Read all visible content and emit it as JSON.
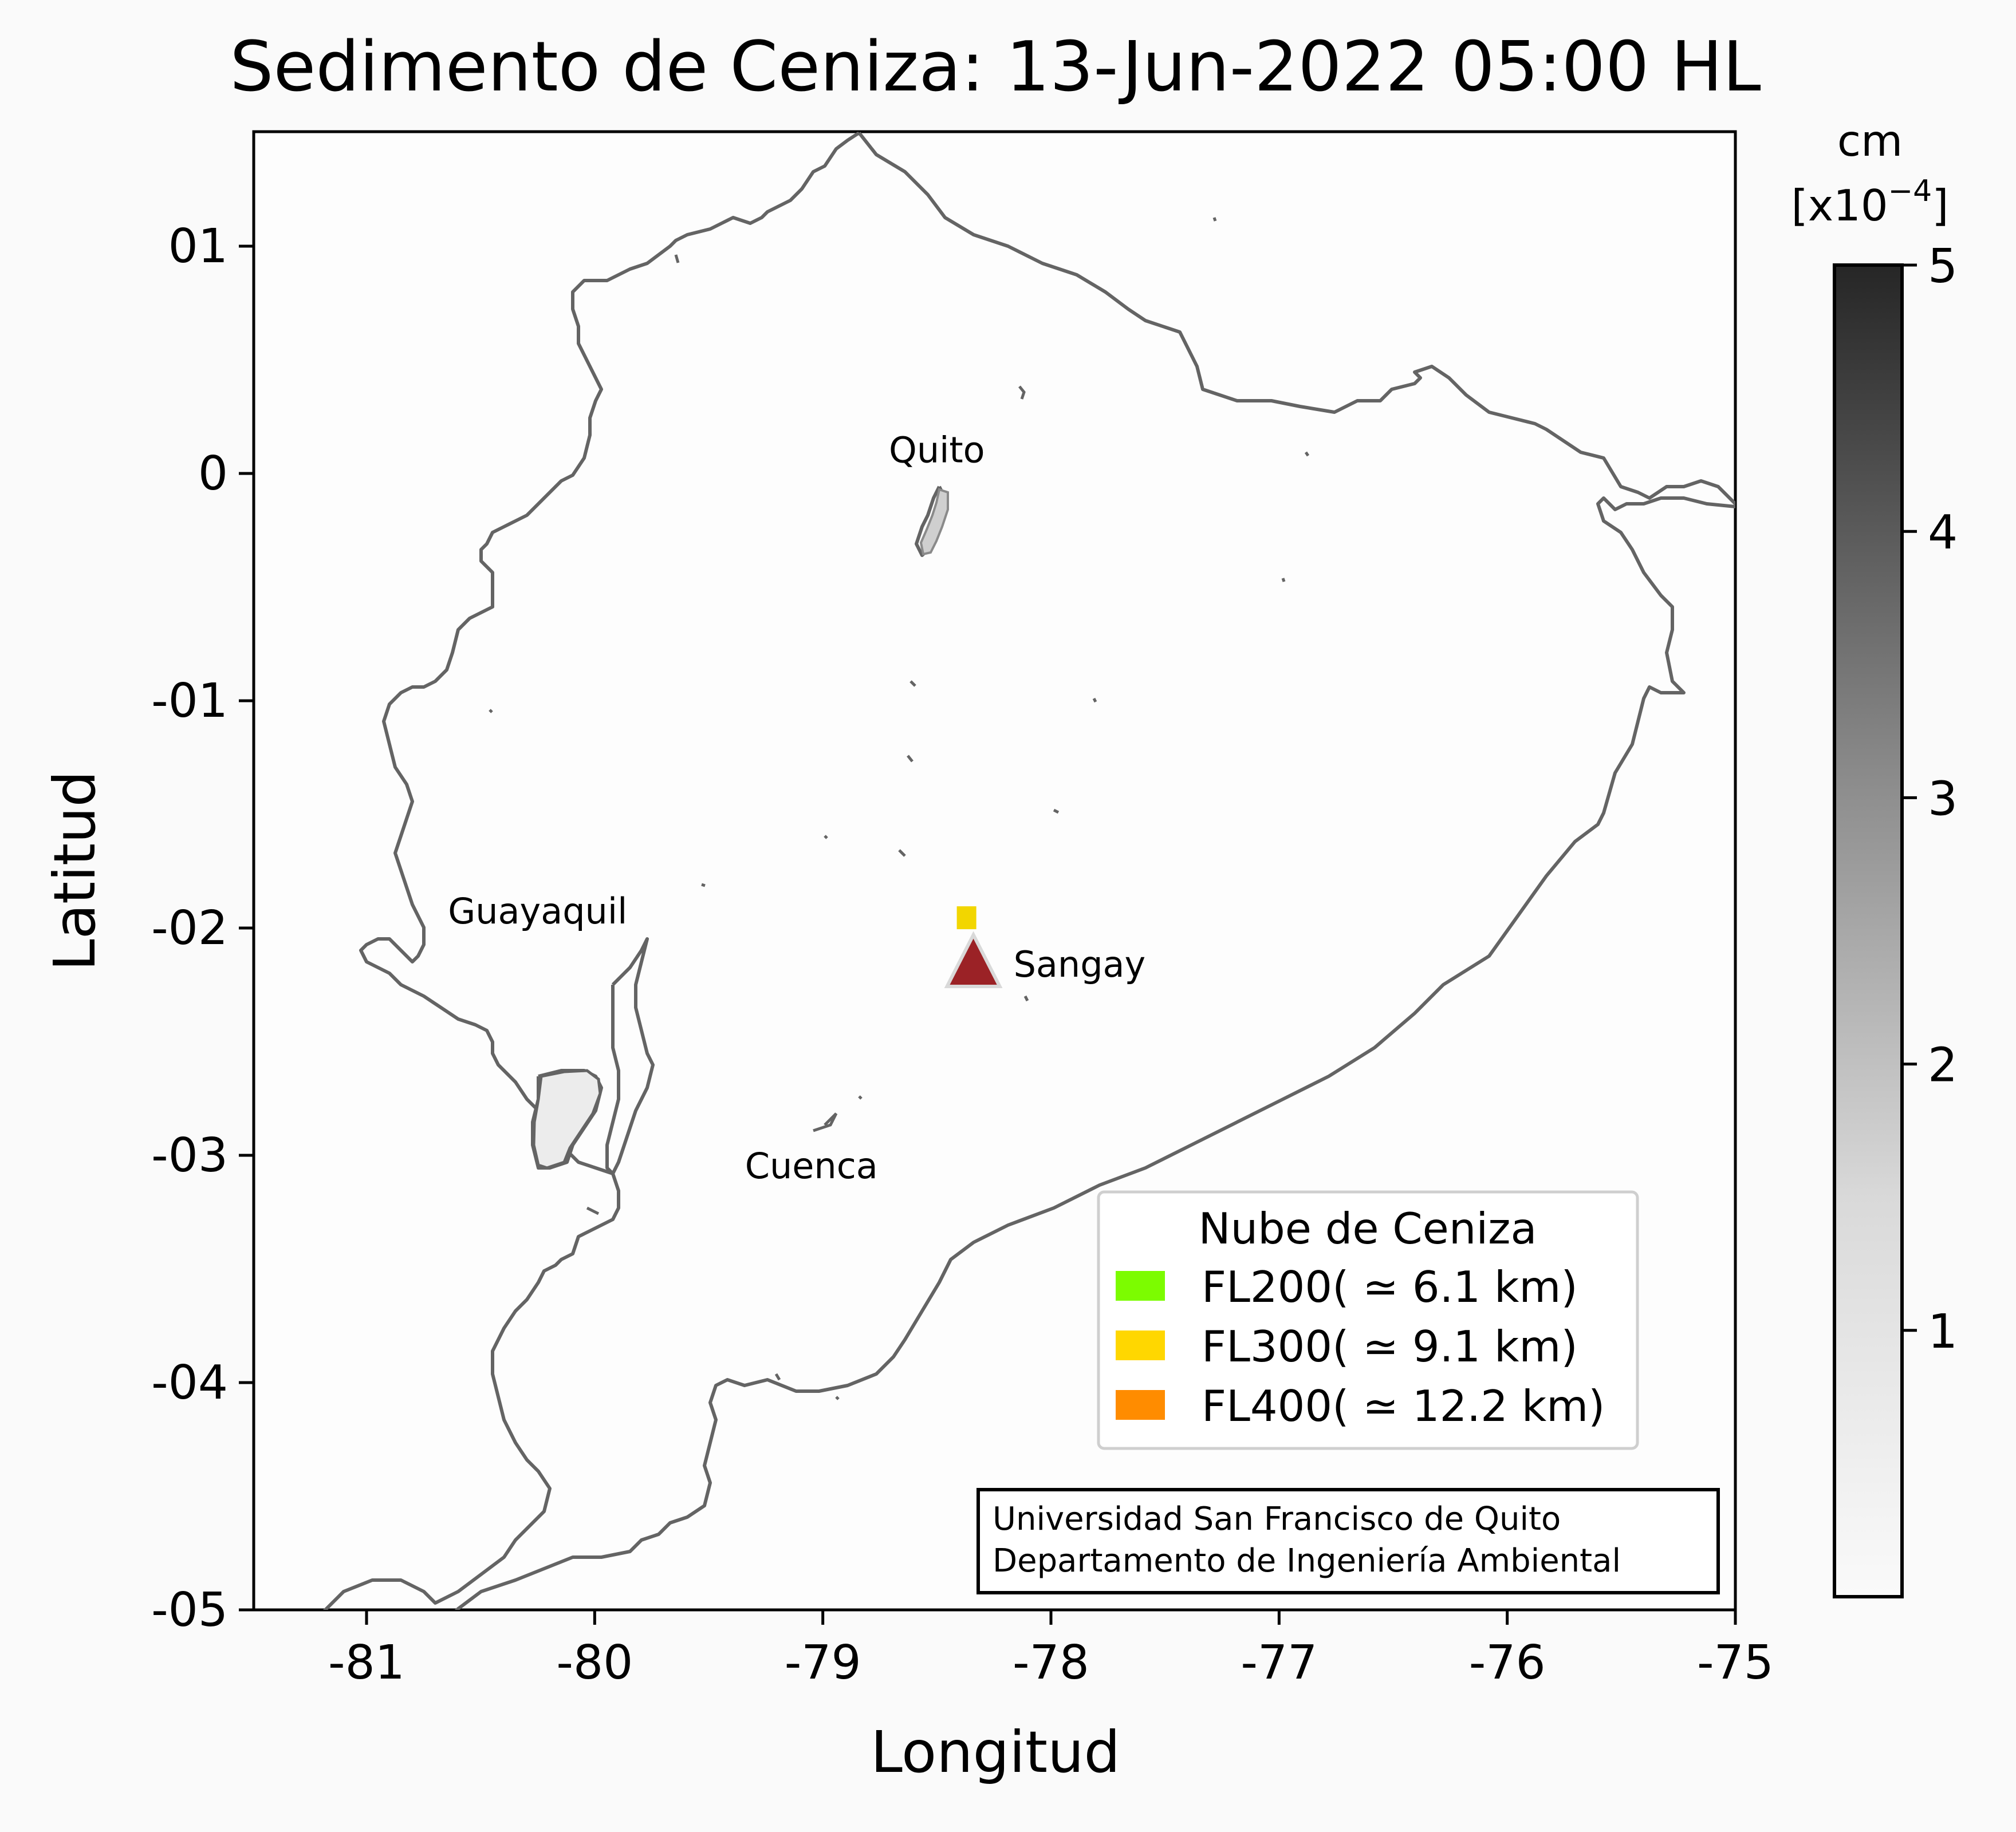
{
  "title": "Sedimento de Ceniza: 13-Jun-2022 05:00 HL",
  "map": {
    "xlabel": "Longitud",
    "ylabel": "Latitud",
    "xlim": [
      -81.5,
      -75
    ],
    "ylim": [
      -5,
      0.5
    ],
    "xticks": [
      {
        "value": -81,
        "label": "-81"
      },
      {
        "value": -80,
        "label": "-80"
      },
      {
        "value": -79,
        "label": "-79"
      },
      {
        "value": -78,
        "label": "-78"
      },
      {
        "value": -77,
        "label": "-77"
      },
      {
        "value": -76,
        "label": "-76"
      },
      {
        "value": -75,
        "label": "-75"
      }
    ],
    "yticks": [
      {
        "value": 1,
        "label": "01"
      },
      {
        "value": 0,
        "label": "0"
      },
      {
        "value": -1,
        "label": "-01"
      },
      {
        "value": -2,
        "label": "-02"
      },
      {
        "value": -3,
        "label": "-03"
      },
      {
        "value": -4,
        "label": "-04"
      },
      {
        "value": -5,
        "label": "-05"
      }
    ],
    "cities": [
      {
        "name": "Quito",
        "lon": -78.5,
        "lat": 0.1
      },
      {
        "name": "Guayaquil",
        "lon": -80.25,
        "lat": -1.93
      },
      {
        "name": "Cuenca",
        "lon": -79.05,
        "lat": -3.05
      }
    ],
    "volcano": {
      "name": "Sangay",
      "lon": -78.34,
      "lat": -2.0,
      "color": "#9b2226"
    },
    "ash_deposit": {
      "lon": -78.37,
      "lat": -1.98,
      "color": "#f2d600",
      "level": "FL300"
    }
  },
  "legend": {
    "title": "Nube de Ceniza",
    "items": [
      {
        "label": "FL200($\\simeq$6.1 km)",
        "display": "FL200( ≃ 6.1 km)",
        "color": "#7cfc00"
      },
      {
        "label": "FL300",
        "display": "FL300( ≃ 9.1 km)",
        "color": "#ffd700"
      },
      {
        "label": "FL400",
        "display": "FL400( ≃ 12.2 km)",
        "color": "#ff8c00"
      }
    ]
  },
  "credit": {
    "line1": "Universidad San Francisco de Quito",
    "line2": "Departamento de Ingeniería Ambiental"
  },
  "colorbar": {
    "unit_line1": "cm",
    "unit_line2": "[x10",
    "unit_exp": "−4",
    "unit_close": "]",
    "min": 0,
    "max": 5,
    "ticks": [
      {
        "value": 1,
        "label": "1"
      },
      {
        "value": 2,
        "label": "2"
      },
      {
        "value": 3,
        "label": "3"
      },
      {
        "value": 4,
        "label": "4"
      },
      {
        "value": 5,
        "label": "5"
      }
    ],
    "color_low": "#fafafa",
    "color_high": "#262626"
  },
  "chart_data": {
    "type": "scatter",
    "title": "Sedimento de Ceniza: 13-Jun-2022 05:00 HL",
    "xlabel": "Longitud",
    "ylabel": "Latitud",
    "xlim": [
      -81.5,
      -75
    ],
    "ylim": [
      -5,
      0.5
    ],
    "series": [
      {
        "name": "Sangay",
        "x": [
          -78.34
        ],
        "y": [
          -2.0
        ]
      }
    ]
  }
}
